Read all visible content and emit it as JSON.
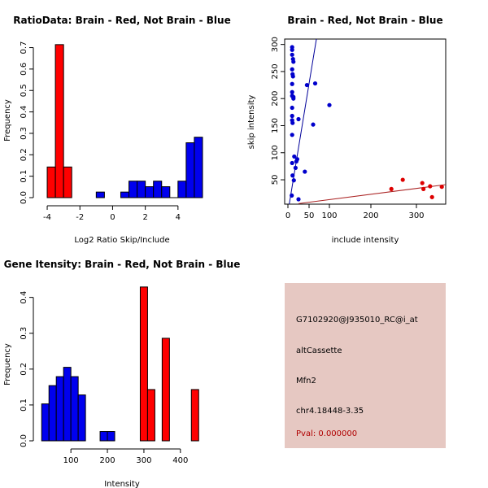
{
  "colors": {
    "red": "#ff0000",
    "blue": "#0000ee",
    "box_bg": "#e6c8c2",
    "pval": "#b00000",
    "scatter_red": "#dd0000",
    "scatter_blue": "#0000cc",
    "fit_blue": "#000099",
    "fit_red": "#aa2222"
  },
  "chart_data": [
    {
      "type": "bar",
      "id": "ratio",
      "title": "RatioData: Brain - Red, Not Brain - Blue",
      "xlabel": "Log2 Ratio Skip/Include",
      "ylabel": "Frequency",
      "xlim": [
        -4.45,
        5.6
      ],
      "ylim": [
        0,
        0.74
      ],
      "xticks": [
        -4,
        -2,
        0,
        2,
        4
      ],
      "yticks": [
        0.0,
        0.1,
        0.2,
        0.3,
        0.4,
        0.5,
        0.6,
        0.7
      ],
      "series": [
        {
          "name": "Brain",
          "color_key": "red",
          "bins": [
            {
              "x0": -4.0,
              "x1": -3.5,
              "value": 0.143
            },
            {
              "x0": -3.5,
              "x1": -3.0,
              "value": 0.714
            },
            {
              "x0": -3.0,
              "x1": -2.5,
              "value": 0.143
            }
          ]
        },
        {
          "name": "Not Brain",
          "color_key": "blue",
          "bins": [
            {
              "x0": -1.0,
              "x1": -0.5,
              "value": 0.026
            },
            {
              "x0": 0.5,
              "x1": 1.0,
              "value": 0.026
            },
            {
              "x0": 1.0,
              "x1": 1.5,
              "value": 0.077
            },
            {
              "x0": 1.5,
              "x1": 2.0,
              "value": 0.077
            },
            {
              "x0": 2.0,
              "x1": 2.5,
              "value": 0.051
            },
            {
              "x0": 2.5,
              "x1": 3.0,
              "value": 0.077
            },
            {
              "x0": 3.0,
              "x1": 3.5,
              "value": 0.051
            },
            {
              "x0": 3.5,
              "x1": 4.0,
              "value": 0.0
            },
            {
              "x0": 4.0,
              "x1": 4.5,
              "value": 0.077
            },
            {
              "x0": 4.5,
              "x1": 5.0,
              "value": 0.256
            },
            {
              "x0": 5.0,
              "x1": 5.5,
              "value": 0.282
            }
          ]
        }
      ]
    },
    {
      "type": "scatter",
      "id": "scatter",
      "title": "Brain - Red, Not Brain - Blue",
      "xlabel": "include intensity",
      "ylabel": "skip intensity",
      "xlim": [
        -5,
        375
      ],
      "ylim": [
        5,
        310
      ],
      "xticks": [
        0,
        50,
        100,
        200,
        300
      ],
      "yticks": [
        50,
        100,
        150,
        200,
        250,
        300
      ],
      "series": [
        {
          "name": "Not Brain",
          "color_key": "scatter_blue",
          "points": [
            [
              10,
              295
            ],
            [
              10,
              290
            ],
            [
              10,
              281
            ],
            [
              12,
              273
            ],
            [
              13,
              268
            ],
            [
              10,
              254
            ],
            [
              11,
              245
            ],
            [
              12,
              241
            ],
            [
              10,
              227
            ],
            [
              10,
              212
            ],
            [
              10,
              205
            ],
            [
              13,
              200
            ],
            [
              13,
              203
            ],
            [
              10,
              183
            ],
            [
              10,
              168
            ],
            [
              10,
              160
            ],
            [
              11,
              155
            ],
            [
              10,
              133
            ],
            [
              15,
              93
            ],
            [
              20,
              84
            ],
            [
              22,
              88
            ],
            [
              10,
              81
            ],
            [
              18,
              72
            ],
            [
              11,
              58
            ],
            [
              14,
              49
            ],
            [
              9,
              21
            ],
            [
              25,
              14
            ],
            [
              40,
              65
            ],
            [
              25,
              162
            ],
            [
              45,
              225
            ],
            [
              65,
              228
            ],
            [
              60,
              152
            ],
            [
              100,
              188
            ]
          ]
        },
        {
          "name": "Brain",
          "color_key": "scatter_red",
          "points": [
            [
              270,
              50
            ],
            [
              245,
              33
            ],
            [
              315,
              44
            ],
            [
              318,
              33
            ],
            [
              335,
              38
            ],
            [
              340,
              18
            ],
            [
              365,
              37
            ]
          ]
        }
      ],
      "fits": [
        {
          "name": "Not Brain fit",
          "color_key": "fit_blue",
          "p1": [
            0,
            -10
          ],
          "p2": [
            68,
            310
          ]
        },
        {
          "name": "Brain fit",
          "color_key": "fit_red",
          "p1": [
            25,
            6
          ],
          "p2": [
            375,
            41
          ]
        }
      ]
    },
    {
      "type": "bar",
      "id": "intensity",
      "title": "Gene Itensity: Brain - Red, Not Brain - Blue",
      "xlabel": "Intensity",
      "ylabel": "Frequency",
      "xlim": [
        15,
        465
      ],
      "ylim": [
        0,
        0.44
      ],
      "xticks": [
        100,
        200,
        300,
        400
      ],
      "yticks": [
        0.0,
        0.1,
        0.2,
        0.3,
        0.4
      ],
      "series": [
        {
          "name": "Not Brain",
          "color_key": "blue",
          "bins": [
            {
              "x0": 20,
              "x1": 40,
              "value": 0.103
            },
            {
              "x0": 40,
              "x1": 60,
              "value": 0.154
            },
            {
              "x0": 60,
              "x1": 80,
              "value": 0.179
            },
            {
              "x0": 80,
              "x1": 100,
              "value": 0.205
            },
            {
              "x0": 100,
              "x1": 120,
              "value": 0.179
            },
            {
              "x0": 120,
              "x1": 140,
              "value": 0.128
            },
            {
              "x0": 180,
              "x1": 200,
              "value": 0.026
            },
            {
              "x0": 200,
              "x1": 220,
              "value": 0.026
            }
          ]
        },
        {
          "name": "Brain",
          "color_key": "red",
          "bins": [
            {
              "x0": 290,
              "x1": 310,
              "value": 0.429
            },
            {
              "x0": 310,
              "x1": 330,
              "value": 0.143
            },
            {
              "x0": 350,
              "x1": 370,
              "value": 0.286
            },
            {
              "x0": 430,
              "x1": 450,
              "value": 0.143
            }
          ]
        }
      ]
    }
  ],
  "info_box": {
    "probe_id": "G7102920@J935010_RC@i_at",
    "event_type": "altCassette",
    "gene": "Mfn2",
    "location": "chr4.18448-3.35",
    "pval": "Pval: 0.000000"
  }
}
